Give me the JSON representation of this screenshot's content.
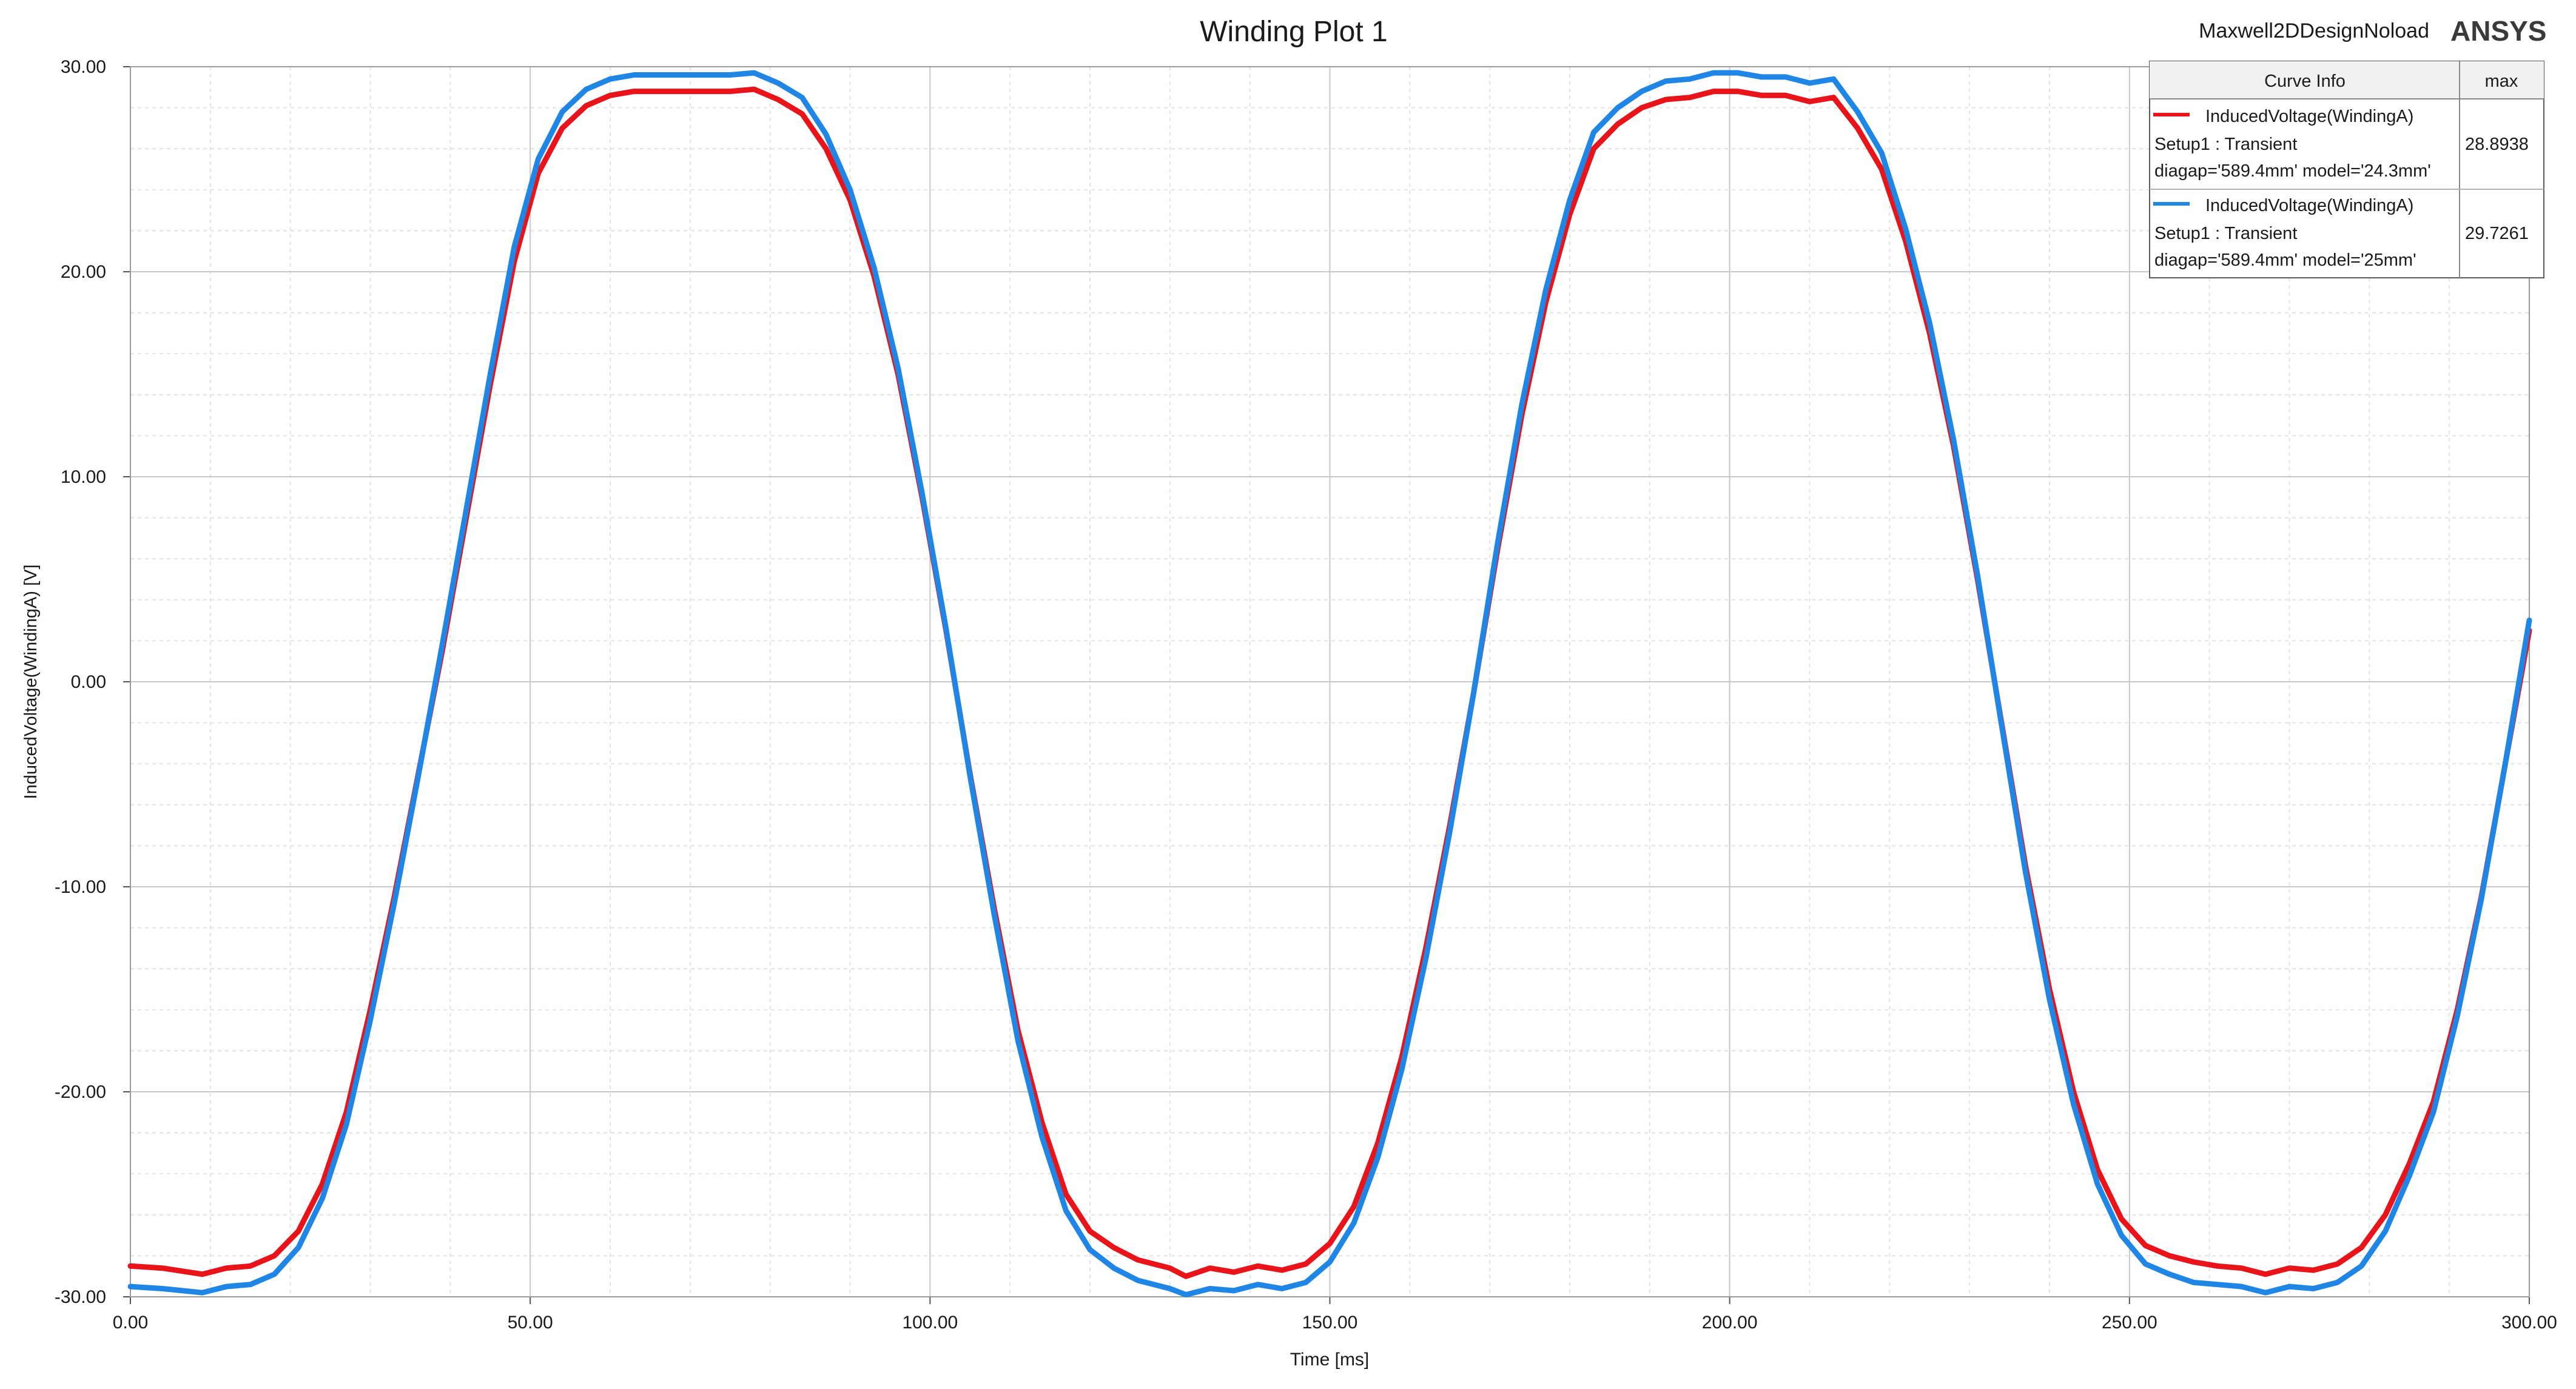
{
  "plot": {
    "title": "Winding Plot 1",
    "design_name": "Maxwell2DDesignNoload",
    "brand": "ANSYS"
  },
  "legend": {
    "header_curve_info": "Curve Info",
    "header_max": "max",
    "entries": [
      {
        "line1": "InducedVoltage(WindingA)",
        "line2": "Setup1 : Transient",
        "line3": "diagap='589.4mm' model='24.3mm'",
        "max": "28.8938",
        "color": "#e8141a"
      },
      {
        "line1": "InducedVoltage(WindingA)",
        "line2": "Setup1 : Transient",
        "line3": "diagap='589.4mm' model='25mm'",
        "max": "29.7261",
        "color": "#1f86e6"
      }
    ]
  },
  "chart_data": {
    "type": "line",
    "title": "Winding Plot 1",
    "xlabel": "Time [ms]",
    "ylabel": "InducedVoltage(WindingA) [V]",
    "xlim": [
      0,
      300
    ],
    "ylim": [
      -30,
      30
    ],
    "grid": true,
    "legend_position": "top-right",
    "x_ticks": [
      0,
      50,
      100,
      150,
      200,
      250,
      300
    ],
    "x_tick_labels": [
      "0.00",
      "50.00",
      "100.00",
      "150.00",
      "200.00",
      "250.00",
      "300.00"
    ],
    "y_ticks": [
      30,
      20,
      10,
      0,
      -10,
      -20,
      -30
    ],
    "y_tick_labels": [
      "30.00",
      "20.00",
      "10.00",
      "0.00",
      "-10.00",
      "-20.00",
      "-30.00"
    ],
    "series": [
      {
        "legend_index": 0,
        "color": "#e8141a",
        "points": [
          [
            0,
            -28.5
          ],
          [
            4,
            -28.6
          ],
          [
            9,
            -28.9
          ],
          [
            12,
            -28.6
          ],
          [
            15,
            -28.5
          ],
          [
            18,
            -28.0
          ],
          [
            21,
            -26.8
          ],
          [
            24,
            -24.5
          ],
          [
            27,
            -21.0
          ],
          [
            30,
            -16.0
          ],
          [
            33,
            -10.5
          ],
          [
            36,
            -4.5
          ],
          [
            39,
            1.5
          ],
          [
            42,
            8.0
          ],
          [
            45,
            14.5
          ],
          [
            48,
            20.5
          ],
          [
            51,
            24.8
          ],
          [
            54,
            27.0
          ],
          [
            57,
            28.1
          ],
          [
            60,
            28.6
          ],
          [
            63,
            28.8
          ],
          [
            70,
            28.8
          ],
          [
            75,
            28.8
          ],
          [
            78,
            28.9
          ],
          [
            81,
            28.4
          ],
          [
            84,
            27.7
          ],
          [
            87,
            26.0
          ],
          [
            90,
            23.5
          ],
          [
            93,
            19.8
          ],
          [
            96,
            15.0
          ],
          [
            99,
            9.0
          ],
          [
            102,
            2.5
          ],
          [
            105,
            -4.5
          ],
          [
            108,
            -11.0
          ],
          [
            111,
            -17.0
          ],
          [
            114,
            -21.5
          ],
          [
            117,
            -25.0
          ],
          [
            120,
            -26.8
          ],
          [
            123,
            -27.6
          ],
          [
            126,
            -28.2
          ],
          [
            130,
            -28.6
          ],
          [
            132,
            -29.0
          ],
          [
            135,
            -28.6
          ],
          [
            138,
            -28.8
          ],
          [
            141,
            -28.5
          ],
          [
            144,
            -28.7
          ],
          [
            147,
            -28.4
          ],
          [
            150,
            -27.4
          ],
          [
            153,
            -25.6
          ],
          [
            156,
            -22.5
          ],
          [
            159,
            -18.3
          ],
          [
            162,
            -13.0
          ],
          [
            165,
            -7.0
          ],
          [
            168,
            -0.5
          ],
          [
            171,
            6.5
          ],
          [
            174,
            13.0
          ],
          [
            177,
            18.5
          ],
          [
            180,
            22.8
          ],
          [
            183,
            26.0
          ],
          [
            186,
            27.2
          ],
          [
            189,
            28.0
          ],
          [
            192,
            28.4
          ],
          [
            195,
            28.5
          ],
          [
            198,
            28.8
          ],
          [
            201,
            28.8
          ],
          [
            204,
            28.6
          ],
          [
            207,
            28.6
          ],
          [
            210,
            28.3
          ],
          [
            213,
            28.5
          ],
          [
            216,
            27.0
          ],
          [
            219,
            25.0
          ],
          [
            222,
            21.5
          ],
          [
            225,
            17.0
          ],
          [
            228,
            11.5
          ],
          [
            231,
            5.0
          ],
          [
            234,
            -2.0
          ],
          [
            237,
            -9.0
          ],
          [
            240,
            -15.0
          ],
          [
            243,
            -20.0
          ],
          [
            246,
            -23.8
          ],
          [
            249,
            -26.2
          ],
          [
            252,
            -27.5
          ],
          [
            255,
            -28.0
          ],
          [
            258,
            -28.3
          ],
          [
            261,
            -28.5
          ],
          [
            264,
            -28.6
          ],
          [
            267,
            -28.9
          ],
          [
            270,
            -28.6
          ],
          [
            273,
            -28.7
          ],
          [
            276,
            -28.4
          ],
          [
            279,
            -27.6
          ],
          [
            282,
            -26.0
          ],
          [
            285,
            -23.5
          ],
          [
            288,
            -20.5
          ],
          [
            291,
            -16.0
          ],
          [
            294,
            -10.5
          ],
          [
            297,
            -4.0
          ],
          [
            300,
            2.5
          ]
        ]
      },
      {
        "legend_index": 1,
        "color": "#1f86e6",
        "points": [
          [
            0,
            -29.5
          ],
          [
            4,
            -29.6
          ],
          [
            9,
            -29.8
          ],
          [
            12,
            -29.5
          ],
          [
            15,
            -29.4
          ],
          [
            18,
            -28.9
          ],
          [
            21,
            -27.6
          ],
          [
            24,
            -25.2
          ],
          [
            27,
            -21.6
          ],
          [
            30,
            -16.5
          ],
          [
            33,
            -10.8
          ],
          [
            36,
            -4.6
          ],
          [
            39,
            1.8
          ],
          [
            42,
            8.4
          ],
          [
            45,
            15.0
          ],
          [
            48,
            21.2
          ],
          [
            51,
            25.5
          ],
          [
            54,
            27.8
          ],
          [
            57,
            28.9
          ],
          [
            60,
            29.4
          ],
          [
            63,
            29.6
          ],
          [
            70,
            29.6
          ],
          [
            75,
            29.6
          ],
          [
            78,
            29.7
          ],
          [
            81,
            29.2
          ],
          [
            84,
            28.5
          ],
          [
            87,
            26.7
          ],
          [
            90,
            24.0
          ],
          [
            93,
            20.2
          ],
          [
            96,
            15.3
          ],
          [
            99,
            9.2
          ],
          [
            102,
            2.6
          ],
          [
            105,
            -4.6
          ],
          [
            108,
            -11.3
          ],
          [
            111,
            -17.5
          ],
          [
            114,
            -22.2
          ],
          [
            117,
            -25.8
          ],
          [
            120,
            -27.7
          ],
          [
            123,
            -28.6
          ],
          [
            126,
            -29.2
          ],
          [
            130,
            -29.6
          ],
          [
            132,
            -29.9
          ],
          [
            135,
            -29.6
          ],
          [
            138,
            -29.7
          ],
          [
            141,
            -29.4
          ],
          [
            144,
            -29.6
          ],
          [
            147,
            -29.3
          ],
          [
            150,
            -28.3
          ],
          [
            153,
            -26.4
          ],
          [
            156,
            -23.2
          ],
          [
            159,
            -18.9
          ],
          [
            162,
            -13.5
          ],
          [
            165,
            -7.3
          ],
          [
            168,
            -0.5
          ],
          [
            171,
            6.8
          ],
          [
            174,
            13.5
          ],
          [
            177,
            19.1
          ],
          [
            180,
            23.5
          ],
          [
            183,
            26.8
          ],
          [
            186,
            28.0
          ],
          [
            189,
            28.8
          ],
          [
            192,
            29.3
          ],
          [
            195,
            29.4
          ],
          [
            198,
            29.7
          ],
          [
            201,
            29.7
          ],
          [
            204,
            29.5
          ],
          [
            207,
            29.5
          ],
          [
            210,
            29.2
          ],
          [
            213,
            29.4
          ],
          [
            216,
            27.8
          ],
          [
            219,
            25.8
          ],
          [
            222,
            22.1
          ],
          [
            225,
            17.5
          ],
          [
            228,
            11.8
          ],
          [
            231,
            5.2
          ],
          [
            234,
            -2.1
          ],
          [
            237,
            -9.3
          ],
          [
            240,
            -15.5
          ],
          [
            243,
            -20.6
          ],
          [
            246,
            -24.5
          ],
          [
            249,
            -27.0
          ],
          [
            252,
            -28.4
          ],
          [
            255,
            -28.9
          ],
          [
            258,
            -29.3
          ],
          [
            261,
            -29.4
          ],
          [
            264,
            -29.5
          ],
          [
            267,
            -29.8
          ],
          [
            270,
            -29.5
          ],
          [
            273,
            -29.6
          ],
          [
            276,
            -29.3
          ],
          [
            279,
            -28.5
          ],
          [
            282,
            -26.8
          ],
          [
            285,
            -24.1
          ],
          [
            288,
            -21.0
          ],
          [
            291,
            -16.3
          ],
          [
            294,
            -10.6
          ],
          [
            297,
            -4.0
          ],
          [
            300,
            3.0
          ]
        ]
      }
    ]
  }
}
